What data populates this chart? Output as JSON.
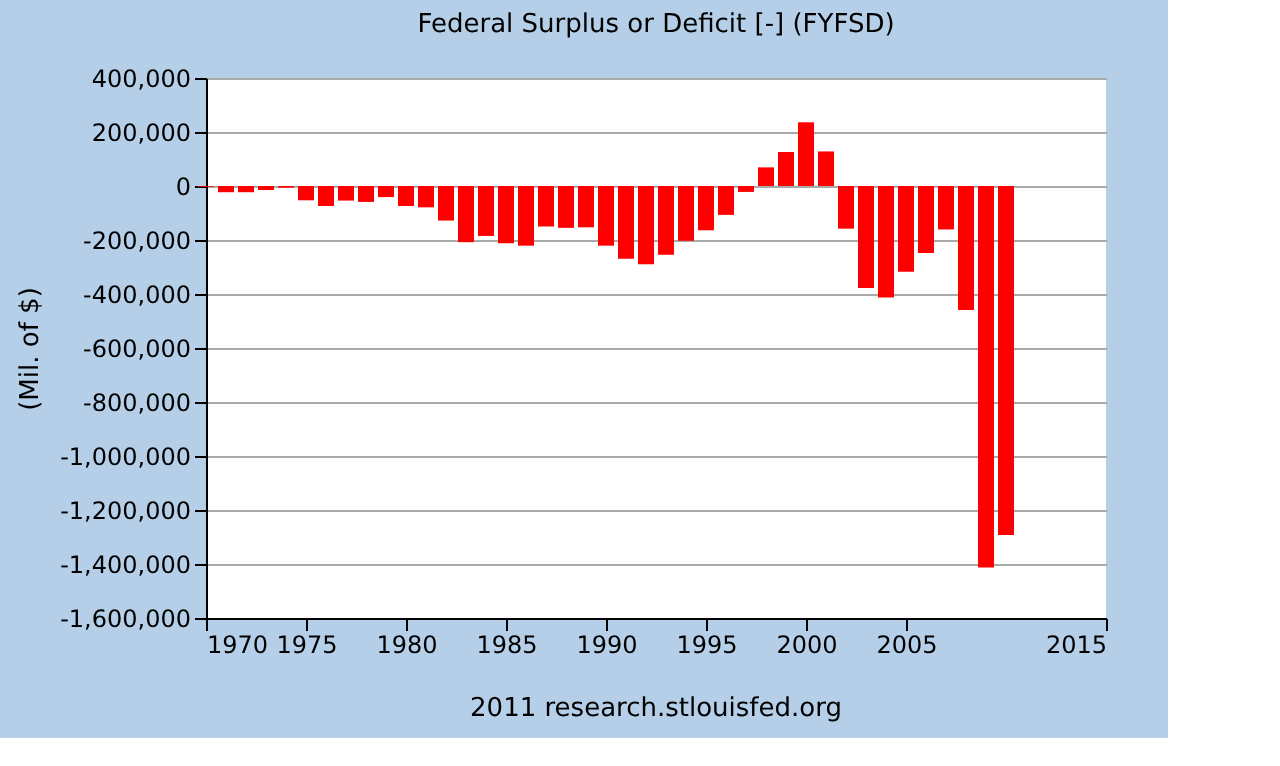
{
  "chart_data": {
    "type": "bar",
    "title": "Federal Surplus or Deficit [-] (FYFSD)",
    "ylabel": "(Mil. of $)",
    "annotations": [
      "2011 research.stlouisfed.org"
    ],
    "x": [
      1970,
      1971,
      1972,
      1973,
      1974,
      1975,
      1976,
      1977,
      1978,
      1979,
      1980,
      1981,
      1982,
      1983,
      1984,
      1985,
      1986,
      1987,
      1988,
      1989,
      1990,
      1991,
      1992,
      1993,
      1994,
      1995,
      1996,
      1997,
      1998,
      1999,
      2000,
      2001,
      2002,
      2003,
      2004,
      2005,
      2006,
      2007,
      2008,
      2009,
      2010
    ],
    "series": [
      {
        "color": "#ff0000",
        "values": [
          -3000,
          -23000,
          -23000,
          -15000,
          -6000,
          -53000,
          -74000,
          -54000,
          -59000,
          -41000,
          -74000,
          -79000,
          -128000,
          -208000,
          -185000,
          -212000,
          -221000,
          -150000,
          -155000,
          -153000,
          -221000,
          -269000,
          -290000,
          -255000,
          -203000,
          -164000,
          -107000,
          -22000,
          69000,
          126000,
          236000,
          128000,
          -158000,
          -378000,
          -413000,
          -318000,
          -248000,
          -161000,
          -459000,
          -1413000,
          -1293000
        ]
      }
    ],
    "xlim": [
      1970,
      2015
    ],
    "xticks": [
      1970,
      1975,
      1980,
      1985,
      1990,
      1995,
      2000,
      2005,
      2015
    ],
    "ylim": [
      -1600000,
      400000
    ],
    "yticks": [
      {
        "value": 400000,
        "label": "400,000"
      },
      {
        "value": 200000,
        "label": "200,000"
      },
      0,
      {
        "value": -200000,
        "label": "-200,000"
      },
      {
        "value": -400000,
        "label": "-400,000"
      },
      {
        "value": -600000,
        "label": "-600,000"
      },
      {
        "value": -800000,
        "label": "-800,000"
      },
      {
        "value": -1000000,
        "label": "-1,000,000"
      },
      {
        "value": -1200000,
        "label": "-1,200,000"
      },
      {
        "value": -1400000,
        "label": "-1,400,000"
      },
      {
        "value": -1600000,
        "label": "-1,600,000"
      }
    ],
    "grid": "y"
  }
}
